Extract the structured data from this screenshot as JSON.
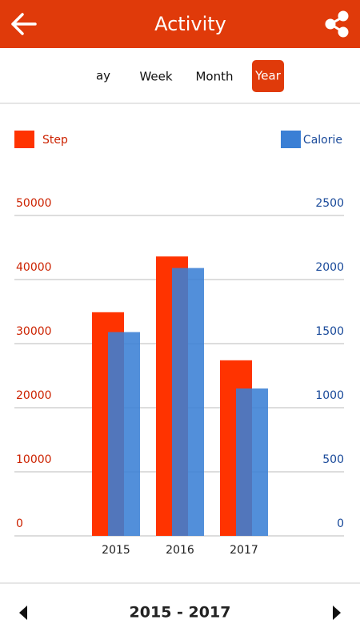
{
  "header": {
    "title": "Activity"
  },
  "tabs": [
    "ay",
    "Week",
    "Month",
    "Year"
  ],
  "chart_data": {
    "type": "bar",
    "categories": [
      "2015",
      "2016",
      "2017"
    ],
    "series": [
      {
        "name": "Step",
        "color": "#ff3300",
        "values": [
          34900,
          43600,
          27400
        ]
      },
      {
        "name": "Calorie",
        "color": "#3a7fd5",
        "values": [
          1590,
          2090,
          1150
        ],
        "axis": "y2"
      }
    ],
    "ylim": [
      0,
      50000
    ],
    "yticks": [
      0,
      10000,
      20000,
      30000,
      40000,
      50000
    ],
    "y2lim": [
      0,
      2500
    ],
    "y2ticks": [
      0,
      500,
      1000,
      1500,
      2000,
      2500
    ],
    "grid": true
  },
  "footer": {
    "range": "2015 - 2017"
  }
}
